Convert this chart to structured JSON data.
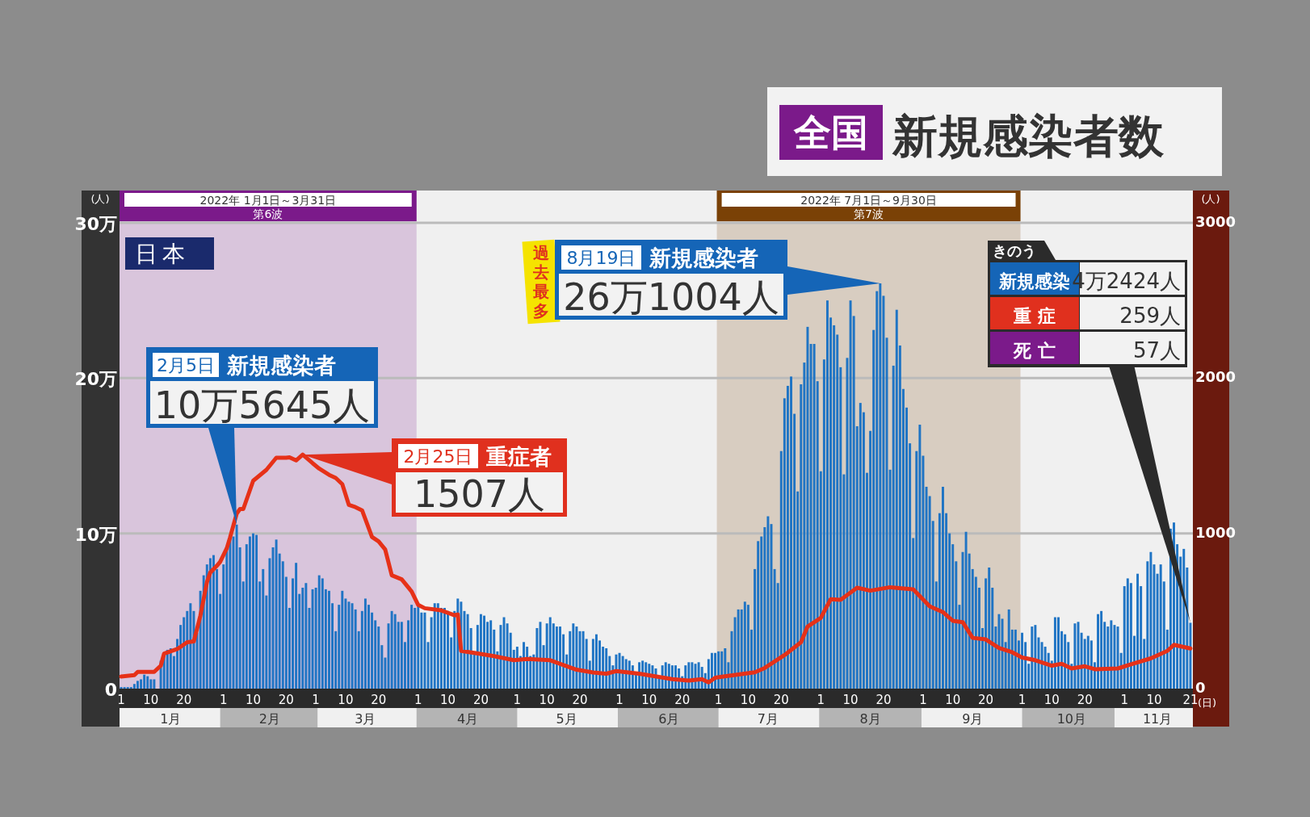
{
  "chart_data": {
    "type": "bar",
    "title": "新規感染者数",
    "subtitle": "全国",
    "ylabel": "(人)",
    "y2label": "(人)",
    "xlabel": "(日)",
    "xlim": [
      "2021-12-31T12:00",
      "2022-11-21T18:00"
    ],
    "ylim": [
      0,
      30
    ],
    "yticks": [
      {
        "value": 0,
        "label": "0"
      },
      {
        "value": 10,
        "label": "10万"
      },
      {
        "value": 20,
        "label": "20万"
      },
      {
        "value": 30,
        "label": "30万"
      }
    ],
    "y2lim": [
      0,
      3000
    ],
    "y2ticks": [
      0,
      1000,
      2000,
      3000
    ],
    "xticks": [
      {
        "value": "2022-01-01",
        "label": "1"
      },
      {
        "value": "2022-01-10",
        "label": "10"
      },
      {
        "value": "2022-01-20",
        "label": "20"
      },
      {
        "value": "2022-02-01",
        "label": "1"
      },
      {
        "value": "2022-02-10",
        "label": "10"
      },
      {
        "value": "2022-02-20",
        "label": "20"
      },
      {
        "value": "2022-03-01",
        "label": "1"
      },
      {
        "value": "2022-03-10",
        "label": "10"
      },
      {
        "value": "2022-03-20",
        "label": "20"
      },
      {
        "value": "2022-04-01",
        "label": "1"
      },
      {
        "value": "2022-04-10",
        "label": "10"
      },
      {
        "value": "2022-04-20",
        "label": "20"
      },
      {
        "value": "2022-05-01",
        "label": "1"
      },
      {
        "value": "2022-05-10",
        "label": "10"
      },
      {
        "value": "2022-05-20",
        "label": "20"
      },
      {
        "value": "2022-06-01",
        "label": "1"
      },
      {
        "value": "2022-06-10",
        "label": "10"
      },
      {
        "value": "2022-06-20",
        "label": "20"
      },
      {
        "value": "2022-07-01",
        "label": "1"
      },
      {
        "value": "2022-07-10",
        "label": "10"
      },
      {
        "value": "2022-07-20",
        "label": "20"
      },
      {
        "value": "2022-08-01",
        "label": "1"
      },
      {
        "value": "2022-08-10",
        "label": "10"
      },
      {
        "value": "2022-08-20",
        "label": "20"
      },
      {
        "value": "2022-09-01",
        "label": "1"
      },
      {
        "value": "2022-09-10",
        "label": "10"
      },
      {
        "value": "2022-09-20",
        "label": "20"
      },
      {
        "value": "2022-10-01",
        "label": "1"
      },
      {
        "value": "2022-10-10",
        "label": "10"
      },
      {
        "value": "2022-10-20",
        "label": "20"
      },
      {
        "value": "2022-11-01",
        "label": "1"
      },
      {
        "value": "2022-11-10",
        "label": "10"
      },
      {
        "value": "2022-11-21",
        "label": "21"
      }
    ],
    "x2lim": [
      "2021-12-31T12:00",
      "2022-11-21T18:00"
    ],
    "x2ticks": [
      {
        "value": "2022-01-16",
        "label": "1月"
      },
      {
        "value": "2022-02-15",
        "label": "2月"
      },
      {
        "value": "2022-03-16",
        "label": "3月"
      },
      {
        "value": "2022-04-16",
        "label": "4月"
      },
      {
        "value": "2022-05-16",
        "label": "5月"
      },
      {
        "value": "2022-06-16",
        "label": "6月"
      },
      {
        "value": "2022-07-16",
        "label": "7月"
      },
      {
        "value": "2022-08-16",
        "label": "8月"
      },
      {
        "value": "2022-09-16",
        "label": "9月"
      },
      {
        "value": "2022-10-16",
        "label": "10月"
      },
      {
        "value": "2022-11-11",
        "label": "11月"
      }
    ],
    "grid": "y",
    "bands": [
      {
        "axis": "x",
        "from": "2022-01-01",
        "to": "2022-03-31",
        "label": "第6波",
        "color": "#7b1a8a"
      },
      {
        "axis": "x",
        "from": "2022-07-01",
        "to": "2022-09-30",
        "label": "第7波",
        "color": "#7a4106"
      }
    ],
    "x": [
      "2022-01-01",
      "2022-01-02",
      "2022-01-03",
      "2022-01-04",
      "2022-01-05",
      "2022-01-06",
      "2022-01-07",
      "2022-01-08",
      "2022-01-09",
      "2022-01-10",
      "2022-01-11",
      "2022-01-12",
      "2022-01-13",
      "2022-01-14",
      "2022-01-15",
      "2022-01-16",
      "2022-01-17",
      "2022-01-18",
      "2022-01-19",
      "2022-01-20",
      "2022-01-21",
      "2022-01-22",
      "2022-01-23",
      "2022-01-24",
      "2022-01-25",
      "2022-01-26",
      "2022-01-27",
      "2022-01-28",
      "2022-01-29",
      "2022-01-30",
      "2022-01-31",
      "2022-02-01",
      "2022-02-02",
      "2022-02-03",
      "2022-02-04",
      "2022-02-05",
      "2022-02-06",
      "2022-02-07",
      "2022-02-08",
      "2022-02-09",
      "2022-02-10",
      "2022-02-11",
      "2022-02-12",
      "2022-02-13",
      "2022-02-14",
      "2022-02-15",
      "2022-02-16",
      "2022-02-17",
      "2022-02-18",
      "2022-02-19",
      "2022-02-20",
      "2022-02-21",
      "2022-02-22",
      "2022-02-23",
      "2022-02-24",
      "2022-02-25",
      "2022-02-26",
      "2022-02-27",
      "2022-02-28",
      "2022-03-01",
      "2022-03-02",
      "2022-03-03",
      "2022-03-04",
      "2022-03-05",
      "2022-03-06",
      "2022-03-07",
      "2022-03-08",
      "2022-03-09",
      "2022-03-10",
      "2022-03-11",
      "2022-03-12",
      "2022-03-13",
      "2022-03-14",
      "2022-03-15",
      "2022-03-16",
      "2022-03-17",
      "2022-03-18",
      "2022-03-19",
      "2022-03-20",
      "2022-03-21",
      "2022-03-22",
      "2022-03-23",
      "2022-03-24",
      "2022-03-25",
      "2022-03-26",
      "2022-03-27",
      "2022-03-28",
      "2022-03-29",
      "2022-03-30",
      "2022-03-31",
      "2022-04-01",
      "2022-04-02",
      "2022-04-03",
      "2022-04-04",
      "2022-04-05",
      "2022-04-06",
      "2022-04-07",
      "2022-04-08",
      "2022-04-09",
      "2022-04-10",
      "2022-04-11",
      "2022-04-12",
      "2022-04-13",
      "2022-04-14",
      "2022-04-15",
      "2022-04-16",
      "2022-04-17",
      "2022-04-18",
      "2022-04-19",
      "2022-04-20",
      "2022-04-21",
      "2022-04-22",
      "2022-04-23",
      "2022-04-24",
      "2022-04-25",
      "2022-04-26",
      "2022-04-27",
      "2022-04-28",
      "2022-04-29",
      "2022-04-30",
      "2022-05-01",
      "2022-05-02",
      "2022-05-03",
      "2022-05-04",
      "2022-05-05",
      "2022-05-06",
      "2022-05-07",
      "2022-05-08",
      "2022-05-09",
      "2022-05-10",
      "2022-05-11",
      "2022-05-12",
      "2022-05-13",
      "2022-05-14",
      "2022-05-15",
      "2022-05-16",
      "2022-05-17",
      "2022-05-18",
      "2022-05-19",
      "2022-05-20",
      "2022-05-21",
      "2022-05-22",
      "2022-05-23",
      "2022-05-24",
      "2022-05-25",
      "2022-05-26",
      "2022-05-27",
      "2022-05-28",
      "2022-05-29",
      "2022-05-30",
      "2022-05-31",
      "2022-06-01",
      "2022-06-02",
      "2022-06-03",
      "2022-06-04",
      "2022-06-05",
      "2022-06-06",
      "2022-06-07",
      "2022-06-08",
      "2022-06-09",
      "2022-06-10",
      "2022-06-11",
      "2022-06-12",
      "2022-06-13",
      "2022-06-14",
      "2022-06-15",
      "2022-06-16",
      "2022-06-17",
      "2022-06-18",
      "2022-06-19",
      "2022-06-20",
      "2022-06-21",
      "2022-06-22",
      "2022-06-23",
      "2022-06-24",
      "2022-06-25",
      "2022-06-26",
      "2022-06-27",
      "2022-06-28",
      "2022-06-29",
      "2022-06-30",
      "2022-07-01",
      "2022-07-02",
      "2022-07-03",
      "2022-07-04",
      "2022-07-05",
      "2022-07-06",
      "2022-07-07",
      "2022-07-08",
      "2022-07-09",
      "2022-07-10",
      "2022-07-11",
      "2022-07-12",
      "2022-07-13",
      "2022-07-14",
      "2022-07-15",
      "2022-07-16",
      "2022-07-17",
      "2022-07-18",
      "2022-07-19",
      "2022-07-20",
      "2022-07-21",
      "2022-07-22",
      "2022-07-23",
      "2022-07-24",
      "2022-07-25",
      "2022-07-26",
      "2022-07-27",
      "2022-07-28",
      "2022-07-29",
      "2022-07-30",
      "2022-07-31",
      "2022-08-01",
      "2022-08-02",
      "2022-08-03",
      "2022-08-04",
      "2022-08-05",
      "2022-08-06",
      "2022-08-07",
      "2022-08-08",
      "2022-08-09",
      "2022-08-10",
      "2022-08-11",
      "2022-08-12",
      "2022-08-13",
      "2022-08-14",
      "2022-08-15",
      "2022-08-16",
      "2022-08-17",
      "2022-08-18",
      "2022-08-19",
      "2022-08-20",
      "2022-08-21",
      "2022-08-22",
      "2022-08-23",
      "2022-08-24",
      "2022-08-25",
      "2022-08-26",
      "2022-08-27",
      "2022-08-28",
      "2022-08-29",
      "2022-08-30",
      "2022-08-31",
      "2022-09-01",
      "2022-09-02",
      "2022-09-03",
      "2022-09-04",
      "2022-09-05",
      "2022-09-06",
      "2022-09-07",
      "2022-09-08",
      "2022-09-09",
      "2022-09-10",
      "2022-09-11",
      "2022-09-12",
      "2022-09-13",
      "2022-09-14",
      "2022-09-15",
      "2022-09-16",
      "2022-09-17",
      "2022-09-18",
      "2022-09-19",
      "2022-09-20",
      "2022-09-21",
      "2022-09-22",
      "2022-09-23",
      "2022-09-24",
      "2022-09-25",
      "2022-09-26",
      "2022-09-27",
      "2022-09-28",
      "2022-09-29",
      "2022-09-30",
      "2022-10-01",
      "2022-10-02",
      "2022-10-03",
      "2022-10-04",
      "2022-10-05",
      "2022-10-06",
      "2022-10-07",
      "2022-10-08",
      "2022-10-09",
      "2022-10-10",
      "2022-10-11",
      "2022-10-12",
      "2022-10-13",
      "2022-10-14",
      "2022-10-15",
      "2022-10-16",
      "2022-10-17",
      "2022-10-18",
      "2022-10-19",
      "2022-10-20",
      "2022-10-21",
      "2022-10-22",
      "2022-10-23",
      "2022-10-24",
      "2022-10-25",
      "2022-10-26",
      "2022-10-27",
      "2022-10-28",
      "2022-10-29",
      "2022-10-30",
      "2022-10-31",
      "2022-11-01",
      "2022-11-02",
      "2022-11-03",
      "2022-11-04",
      "2022-11-05",
      "2022-11-06",
      "2022-11-07",
      "2022-11-08",
      "2022-11-09",
      "2022-11-10",
      "2022-11-11",
      "2022-11-12",
      "2022-11-13",
      "2022-11-14",
      "2022-11-15",
      "2022-11-16",
      "2022-11-17",
      "2022-11-18",
      "2022-11-19",
      "2022-11-20",
      "2022-11-21"
    ],
    "series": [
      {
        "color": "#1f74c4",
        "values": [
          0.1,
          0.1,
          0.1,
          0.1,
          0.3,
          0.5,
          0.6,
          0.9,
          0.8,
          0.6,
          0.6,
          null,
          1.8,
          2.2,
          2.5,
          2.6,
          2.1,
          3.2,
          4.1,
          4.6,
          5,
          5.5,
          5,
          3.6,
          6.3,
          7.3,
          8,
          8.4,
          8.6,
          7.7,
          6.1,
          8,
          9.1,
          9.7,
          9.8,
          10.5645,
          9.1,
          6.9,
          9.3,
          9.8,
          10,
          9.9,
          6.9,
          7.7,
          6,
          8.4,
          9.1,
          9.6,
          8.7,
          8.2,
          7.2,
          5.2,
          7.1,
          8.1,
          6.1,
          6.5,
          6.8,
          5.2,
          6.4,
          6.5,
          7.3,
          7.1,
          6.4,
          6.3,
          5.5,
          3.7,
          5.4,
          6.3,
          5.8,
          5.6,
          5.5,
          5.1,
          3.7,
          5,
          5.8,
          5.4,
          4.9,
          4.4,
          4,
          2.8,
          2,
          4.2,
          5,
          4.8,
          4.3,
          4.3,
          3,
          4.4,
          5.4,
          5.2,
          5.4,
          4.9,
          4.9,
          3,
          4.6,
          5.5,
          5.5,
          5.2,
          5.2,
          5,
          3.3,
          5,
          5.8,
          5.6,
          5,
          4.8,
          3.9,
          2.4,
          4.1,
          4.8,
          4.7,
          4.3,
          4.4,
          3.8,
          2.4,
          4.1,
          4.6,
          4.2,
          3.6,
          2.5,
          2.7,
          2.1,
          3,
          2.7,
          2.1,
          2.2,
          3.9,
          4.3,
          2.8,
          4.2,
          4.6,
          4.2,
          4,
          4,
          3.5,
          2.2,
          3.7,
          4.2,
          4,
          3.7,
          3.7,
          3.2,
          1.8,
          3.2,
          3.5,
          3.1,
          2.7,
          2.6,
          2.1,
          1.5,
          2.2,
          2.3,
          2.1,
          1.9,
          1.8,
          1.5,
          1,
          1.7,
          1.8,
          1.7,
          1.6,
          1.5,
          1.3,
          0.8,
          1.5,
          1.7,
          1.6,
          1.5,
          1.5,
          1.3,
          0.8,
          1.5,
          1.7,
          1.7,
          1.6,
          1.7,
          1.4,
          1,
          1.9,
          2.3,
          2.3,
          2.4,
          2.4,
          2.6,
          1.7,
          3.7,
          4.6,
          5.1,
          5.1,
          5.6,
          5.4,
          3.8,
          7.7,
          9.5,
          9.8,
          10.4,
          11.1,
          10.6,
          7.7,
          6.8,
          15.3,
          18.7,
          19.5,
          20.1,
          17.7,
          12.7,
          19.6,
          21,
          23.3,
          22.2,
          22.2,
          19.8,
          14,
          21.2,
          25,
          23.9,
          23.4,
          22.8,
          20.7,
          13.8,
          21.3,
          25,
          24,
          16.9,
          18.4,
          17.8,
          13.9,
          16.6,
          23.1,
          25.6,
          26.1004,
          25.3,
          22.6,
          14.1,
          20.8,
          24.4,
          22.1,
          19.3,
          18.1,
          15.8,
          9.7,
          15.3,
          17,
          15,
          13,
          12.4,
          10.8,
          6.9,
          11.3,
          13,
          11.3,
          10,
          9.3,
          8.2,
          5.4,
          8.8,
          10.1,
          8.7,
          7.7,
          7.2,
          6.5,
          3.9,
          7.1,
          7.8,
          6.5,
          4,
          4.8,
          4.5,
          3,
          5.1,
          3.8,
          3.8,
          3.1,
          3.6,
          3,
          1.6,
          4,
          4.1,
          3.3,
          3,
          2.7,
          2.3,
          1.8,
          4.6,
          4.6,
          3.7,
          3.5,
          3,
          1.6,
          4.2,
          4.3,
          3.6,
          3.2,
          3.4,
          3.1,
          1.7,
          4.8,
          5,
          4.3,
          4,
          4.4,
          4.1,
          4,
          2.3,
          6.6,
          7.1,
          6.8,
          3.4,
          7.4,
          6.6,
          3.2,
          8.2,
          8.8,
          8,
          7.4,
          8,
          6.9,
          3.8,
          10.3,
          10.7,
          9.3,
          8.5,
          9,
          7.8,
          4.2424
        ]
      },
      {
        "type": "line",
        "axis": "y2",
        "color": "#e63118",
        "line_style": "solid",
        "marker": "none",
        "x": [
          "2022-01-01",
          "2022-01-05",
          "2022-01-06",
          "2022-01-11",
          "2022-01-13",
          "2022-01-14",
          "2022-01-18",
          "2022-01-21",
          "2022-01-23",
          "2022-01-25",
          "2022-01-27",
          "2022-01-28",
          "2022-01-30",
          "2022-01-31",
          "2022-02-02",
          "2022-02-03",
          "2022-02-05",
          "2022-02-06",
          "2022-02-07",
          "2022-02-10",
          "2022-02-12",
          "2022-02-14",
          "2022-02-17",
          "2022-02-20",
          "2022-02-21",
          "2022-02-23",
          "2022-02-25",
          "2022-02-28",
          "2022-03-02",
          "2022-03-05",
          "2022-03-07",
          "2022-03-09",
          "2022-03-11",
          "2022-03-13",
          "2022-03-15",
          "2022-03-18",
          "2022-03-20",
          "2022-03-22",
          "2022-03-24",
          "2022-03-27",
          "2022-03-30",
          "2022-04-01",
          "2022-04-03",
          "2022-04-08",
          "2022-04-12",
          "2022-04-13",
          "2022-04-14",
          "2022-04-18",
          "2022-04-24",
          "2022-04-30",
          "2022-05-04",
          "2022-05-11",
          "2022-05-19",
          "2022-05-24",
          "2022-05-28",
          "2022-05-31",
          "2022-06-07",
          "2022-06-17",
          "2022-06-22",
          "2022-06-26",
          "2022-06-28",
          "2022-06-30",
          "2022-07-02",
          "2022-07-12",
          "2022-07-15",
          "2022-07-21",
          "2022-07-26",
          "2022-07-28",
          "2022-08-01",
          "2022-08-04",
          "2022-08-07",
          "2022-08-12",
          "2022-08-16",
          "2022-08-22",
          "2022-08-29",
          "2022-09-03",
          "2022-09-07",
          "2022-09-10",
          "2022-09-13",
          "2022-09-16",
          "2022-09-20",
          "2022-09-24",
          "2022-09-28",
          "2022-10-01",
          "2022-10-05",
          "2022-10-10",
          "2022-10-13",
          "2022-10-16",
          "2022-10-20",
          "2022-10-23",
          "2022-10-30",
          "2022-11-03",
          "2022-11-09",
          "2022-11-14",
          "2022-11-16",
          "2022-11-21"
        ],
        "values": [
          78,
          87,
          108,
          108,
          148,
          225,
          255,
          299,
          304,
          470,
          687,
          748,
          791,
          817,
          904,
          974,
          1127,
          1157,
          1157,
          1339,
          1374,
          1409,
          1487,
          1487,
          1490,
          1470,
          1507,
          1452,
          1417,
          1377,
          1357,
          1317,
          1183,
          1169,
          1148,
          977,
          948,
          896,
          730,
          704,
          626,
          539,
          518,
          504,
          473,
          478,
          243,
          230,
          209,
          183,
          191,
          183,
          122,
          104,
          96,
          113,
          96,
          61,
          52,
          61,
          40,
          70,
          77,
          105,
          133,
          216,
          299,
          400,
          456,
          576,
          572,
          650,
          631,
          653,
          640,
          530,
          493,
          437,
          428,
          327,
          317,
          262,
          234,
          200,
          183,
          148,
          160,
          130,
          144,
          125,
          130,
          157,
          195,
          243,
          282,
          259
        ]
      }
    ],
    "annotations": [
      "日本",
      {
        "text": "2月5日 新規感染者\n10万5645人",
        "x": "2022-02-05",
        "y": 10.5645
      },
      {
        "text": "2月25日 重症者\n1507人",
        "x": "2022-02-25",
        "y": 15.07
      },
      "過去最多",
      {
        "text": "8月19日 新規感染者\n26万1004人",
        "x": "2022-08-19",
        "y": 26.1004
      },
      "きのう",
      "新規感染",
      {
        "text": "4万2424人",
        "x": "2022-11-21",
        "y": 4.2424
      },
      "重 症",
      "259人",
      "死 亡",
      "57人",
      "2022年 1月1日～3月31日",
      "2022年 7月1日～9月30日"
    ]
  }
}
